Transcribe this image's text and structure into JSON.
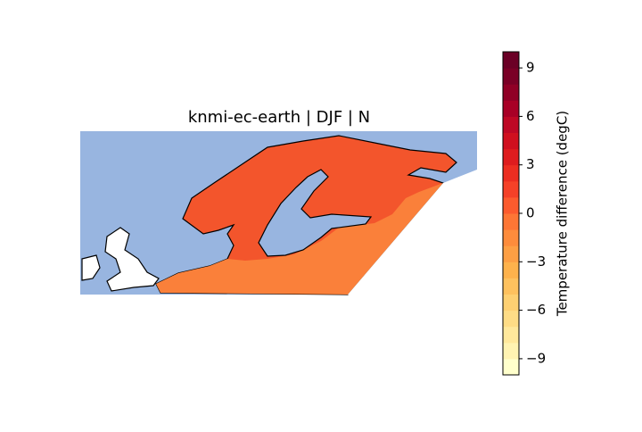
{
  "chart_data": {
    "type": "map",
    "title": "knmi-ec-earth | DJF | N",
    "colorbar": {
      "label": "Temperature difference (degC)",
      "lim": [
        -10,
        10
      ],
      "ticks": [
        {
          "value": -9,
          "label": "−9"
        },
        {
          "value": -6,
          "label": "−6"
        },
        {
          "value": -3,
          "label": "−3"
        },
        0,
        3,
        6,
        9
      ],
      "colors": [
        "#ffffcc",
        "#fff3b2",
        "#ffe89c",
        "#fedc86",
        "#fed072",
        "#fec15e",
        "#feb24c",
        "#fd9f44",
        "#fd8c3c",
        "#fd7635",
        "#fc5b2e",
        "#f54128",
        "#ec2e21",
        "#de1c1e",
        "#d0101f",
        "#be0825",
        "#a80026",
        "#900026",
        "#7a0026",
        "#6b0026"
      ]
    }
  }
}
